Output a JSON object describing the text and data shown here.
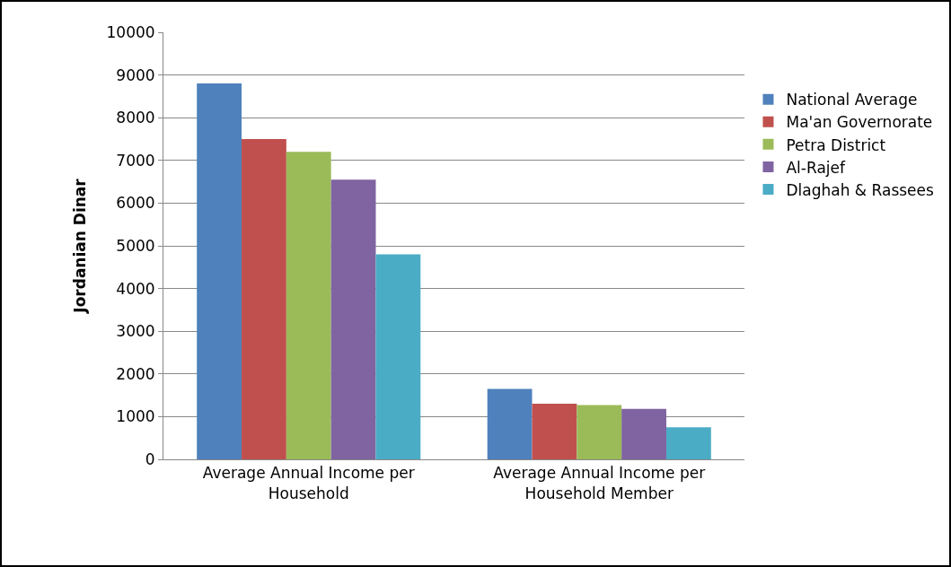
{
  "chart_data": {
    "type": "bar",
    "ylabel": "Jordanian Dinar",
    "categories": [
      "Average Annual Income per Household",
      "Average Annual Income per Household Member"
    ],
    "series": [
      {
        "name": "National Average",
        "color": "#4f81bd",
        "values": [
          8800,
          1650
        ]
      },
      {
        "name": "Ma'an Governorate",
        "color": "#c0504d",
        "values": [
          7500,
          1300
        ]
      },
      {
        "name": "Petra District",
        "color": "#9bbb59",
        "values": [
          7200,
          1270
        ]
      },
      {
        "name": "Al-Rajef",
        "color": "#8064a2",
        "values": [
          6550,
          1180
        ]
      },
      {
        "name": "Dlaghah & Rassees",
        "color": "#4bacc6",
        "values": [
          4800,
          750
        ]
      }
    ],
    "ylim": [
      0,
      10000
    ],
    "yticks": [
      0,
      1000,
      2000,
      3000,
      4000,
      5000,
      6000,
      7000,
      8000,
      9000,
      10000
    ],
    "grid": "y",
    "legend": "right"
  }
}
